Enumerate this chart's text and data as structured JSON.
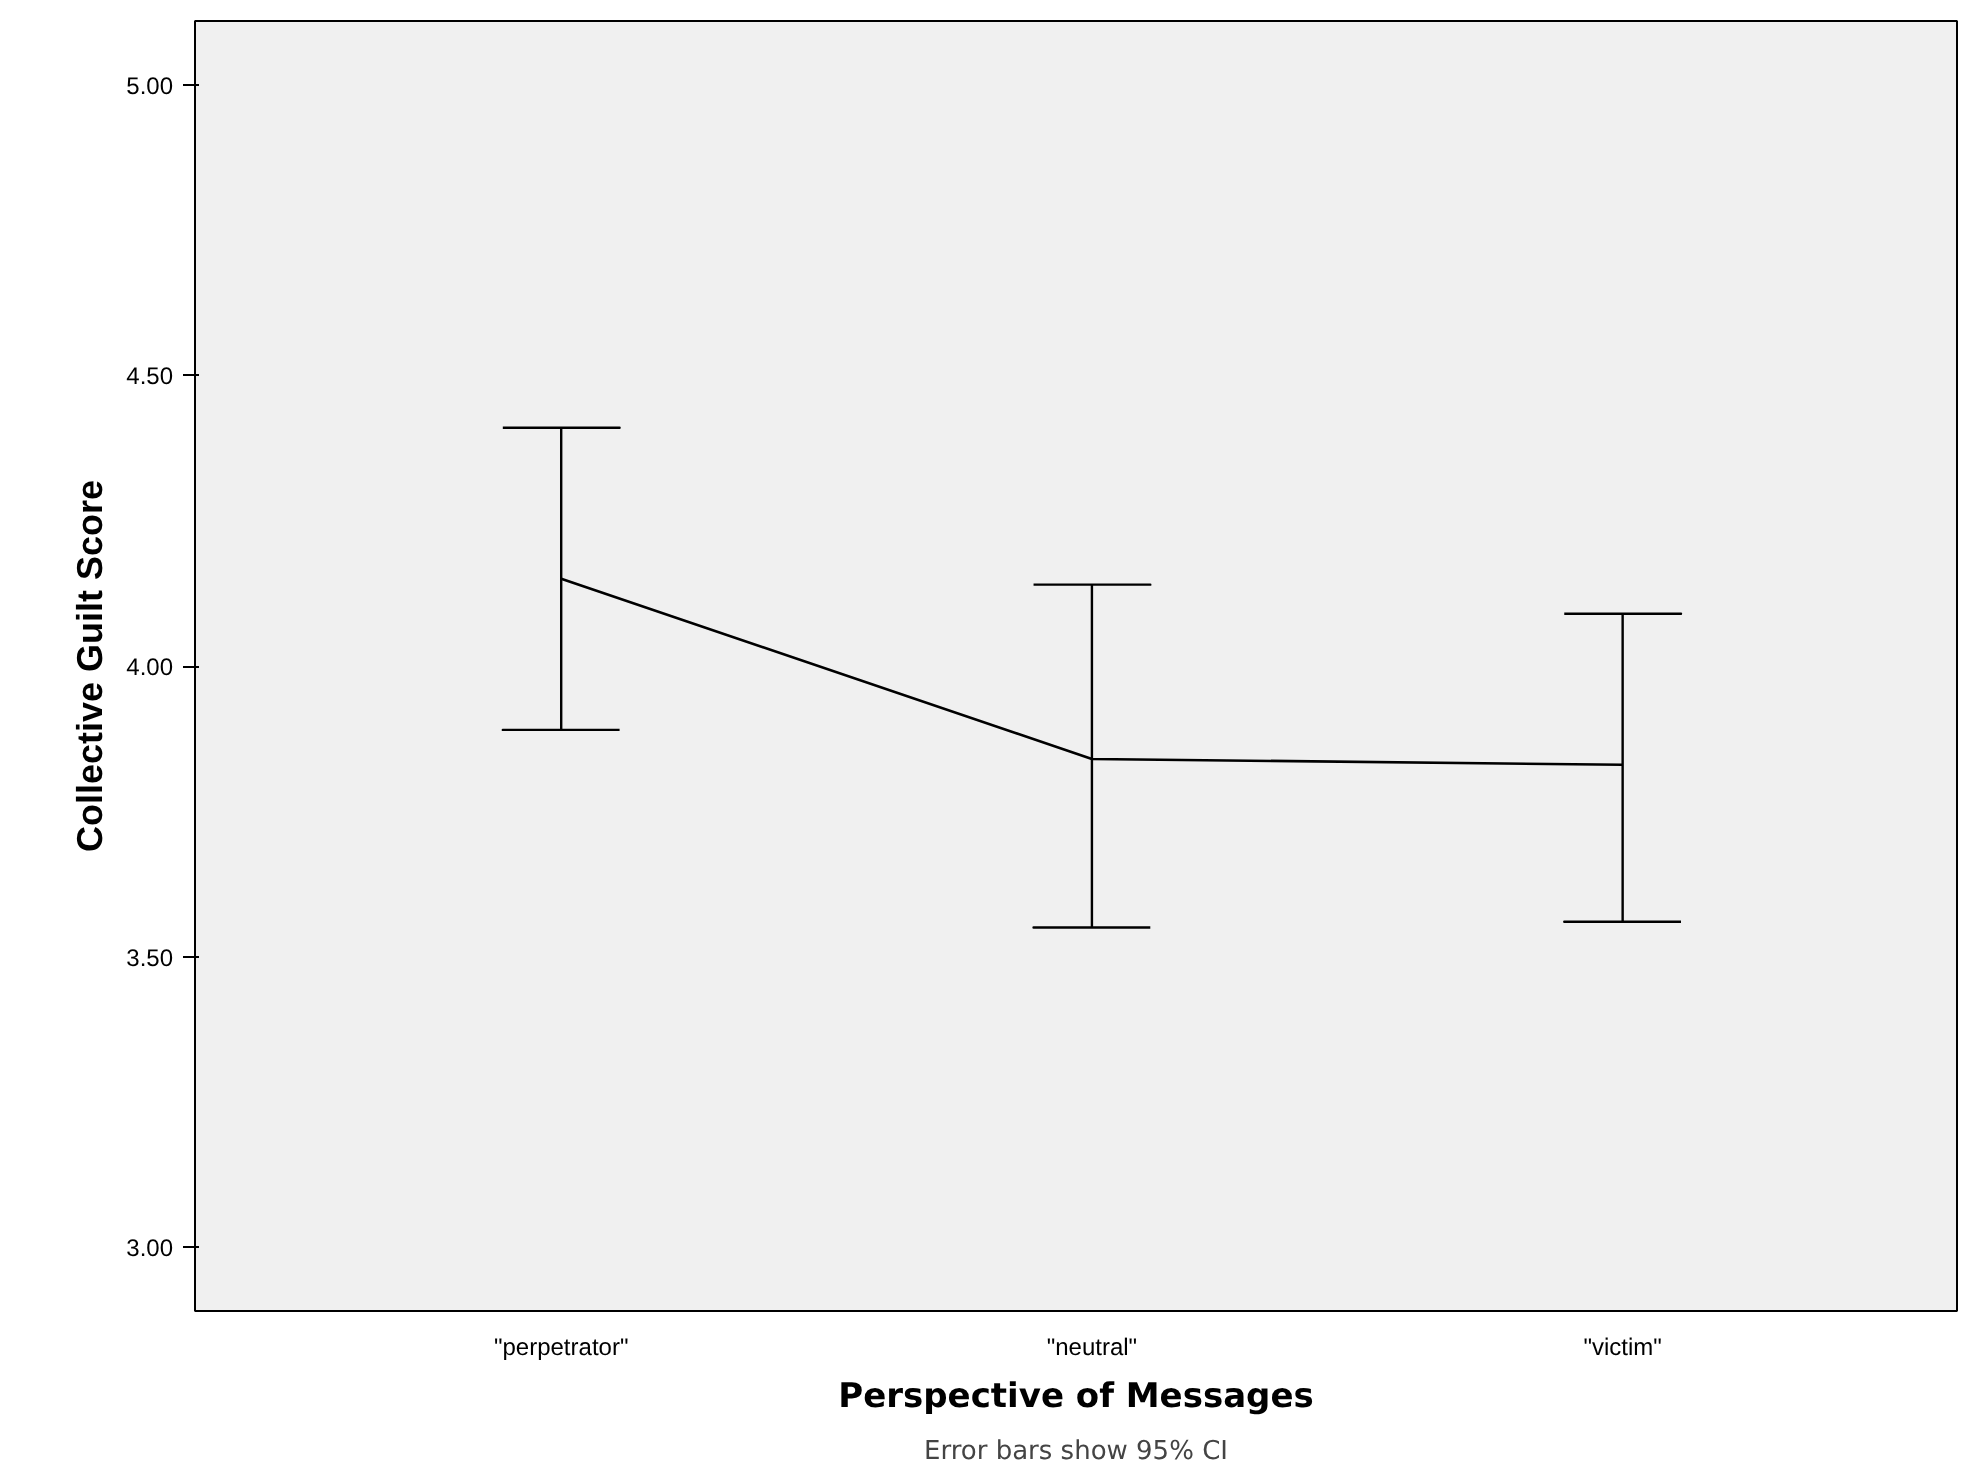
{
  "chart_data": {
    "type": "line",
    "categories": [
      "\"perpetrator\"",
      "\"neutral\"",
      "\"victim\""
    ],
    "color": "#000000",
    "values": [
      4.15,
      3.84,
      3.83
    ],
    "errors": [
      [
        3.89,
        4.41
      ],
      [
        3.55,
        4.14
      ],
      [
        3.56,
        4.09
      ]
    ],
    "xlabel": "Perspective of Messages",
    "ylabel": "Collective Guilt Score",
    "ylim": [
      2.89,
      5.11
    ],
    "yticks": [
      {
        "value": 3,
        "label": "3.00"
      },
      {
        "value": 3.5,
        "label": "3.50"
      },
      {
        "value": 4,
        "label": "4.00"
      },
      {
        "value": 4.5,
        "label": "4.50"
      },
      {
        "value": 5,
        "label": "5.00"
      }
    ],
    "annotations": [
      "Error bars show 95% CI"
    ],
    "grid": false,
    "marker": "none",
    "line_style": "solid"
  }
}
